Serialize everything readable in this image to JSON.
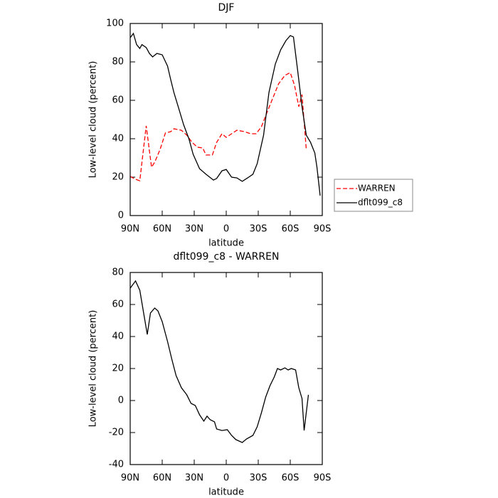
{
  "chart_data": [
    {
      "type": "line",
      "title": "DJF",
      "xlabel": "latitude",
      "ylabel": "Low-level cloud (percent)",
      "xlim": [
        90,
        -90
      ],
      "ylim": [
        0,
        100
      ],
      "xticks": [
        {
          "value": 90,
          "label": "90N"
        },
        {
          "value": 60,
          "label": "60N"
        },
        {
          "value": 30,
          "label": "30N"
        },
        0,
        {
          "value": -30,
          "label": "30S"
        },
        {
          "value": -60,
          "label": "60S"
        },
        {
          "value": -90,
          "label": "90S"
        }
      ],
      "yticks": [
        0,
        20,
        40,
        60,
        80,
        100
      ],
      "legend": "right",
      "series": [
        {
          "name": "WARREN",
          "color": "#ff0000",
          "line_style": "dashed",
          "x": [
            90,
            85,
            81,
            75,
            73,
            70,
            67,
            62,
            57,
            52,
            49,
            42,
            37,
            32,
            27,
            22,
            19,
            13,
            9,
            4,
            0,
            -5,
            -10,
            -17,
            -23,
            -28,
            -33,
            -39,
            -45,
            -49,
            -55,
            -60,
            -64,
            -68,
            -71,
            -75
          ],
          "values": [
            20.4,
            18.9,
            18.1,
            46.7,
            38.1,
            25.2,
            27.8,
            34.4,
            43,
            43.7,
            45.2,
            44.4,
            41.9,
            38.1,
            35.6,
            35.2,
            31.5,
            31.5,
            38.1,
            42.6,
            40.7,
            42.6,
            44.4,
            43.7,
            42.6,
            42.6,
            46.3,
            54.8,
            63,
            68.5,
            73,
            74.4,
            67.8,
            56.7,
            63,
            34.4
          ]
        },
        {
          "name": "dflt099_c8",
          "color": "#000000",
          "line_style": "solid",
          "x": [
            90,
            87,
            84,
            81,
            79,
            75,
            72,
            69,
            65,
            60,
            55,
            52,
            49,
            45,
            40,
            35,
            31,
            25,
            19,
            12,
            9,
            4,
            0,
            -5,
            -10,
            -15,
            -20,
            -25,
            -29,
            -35,
            -40,
            -46,
            -51,
            -56,
            -60,
            -63,
            -67,
            -71,
            -75,
            -79,
            -83,
            -85,
            -88
          ],
          "values": [
            92.6,
            94.8,
            89,
            87,
            89,
            87.5,
            84.4,
            82.6,
            84.4,
            83.7,
            77.8,
            70.7,
            64,
            56.7,
            47.4,
            40,
            31.9,
            24.4,
            21.5,
            18.5,
            19.3,
            23.3,
            24,
            20,
            19.6,
            17.8,
            19.6,
            21.5,
            27,
            41.9,
            64,
            78.9,
            86.3,
            91.1,
            93.7,
            93,
            75.2,
            56.7,
            41.9,
            38.1,
            32.6,
            25.2,
            10.4
          ]
        }
      ]
    },
    {
      "type": "line",
      "title": "dflt099_c8 - WARREN",
      "xlabel": "latitude",
      "ylabel": "Low-level cloud (percent)",
      "xlim": [
        90,
        -90
      ],
      "ylim": [
        -40,
        80
      ],
      "xticks": [
        {
          "value": 90,
          "label": "90N"
        },
        {
          "value": 60,
          "label": "60N"
        },
        {
          "value": 30,
          "label": "30N"
        },
        0,
        {
          "value": -30,
          "label": "30S"
        },
        {
          "value": -60,
          "label": "60S"
        },
        {
          "value": -90,
          "label": "90S"
        }
      ],
      "yticks": [
        -40,
        -20,
        0,
        20,
        40,
        60,
        80
      ],
      "series": [
        {
          "color": "#000000",
          "line_style": "solid",
          "x": [
            90,
            85,
            81,
            74,
            71,
            67,
            64,
            60,
            55,
            51,
            47,
            42,
            37,
            33,
            29,
            25,
            21,
            18,
            15,
            11,
            9,
            4,
            -1,
            -5,
            -9,
            -15,
            -19,
            -25,
            -29,
            -33,
            -37,
            -41,
            -45,
            -48,
            -51,
            -55,
            -58,
            -61,
            -65,
            -68,
            -71,
            -73,
            -77
          ],
          "values": [
            70.2,
            74.7,
            68.9,
            41.3,
            54.7,
            57.8,
            56,
            49.3,
            36.9,
            25.8,
            15.6,
            8,
            3.6,
            -1.8,
            -3.1,
            -8.9,
            -12.9,
            -9.8,
            -12,
            -13.3,
            -17.8,
            -18.7,
            -18.2,
            -21.8,
            -24.4,
            -26.2,
            -24,
            -21.8,
            -16.4,
            -7.6,
            2.2,
            9.3,
            14.7,
            20,
            19.1,
            20.4,
            19.1,
            20,
            19.1,
            8,
            1.3,
            -18.7,
            3.6
          ]
        }
      ]
    }
  ]
}
